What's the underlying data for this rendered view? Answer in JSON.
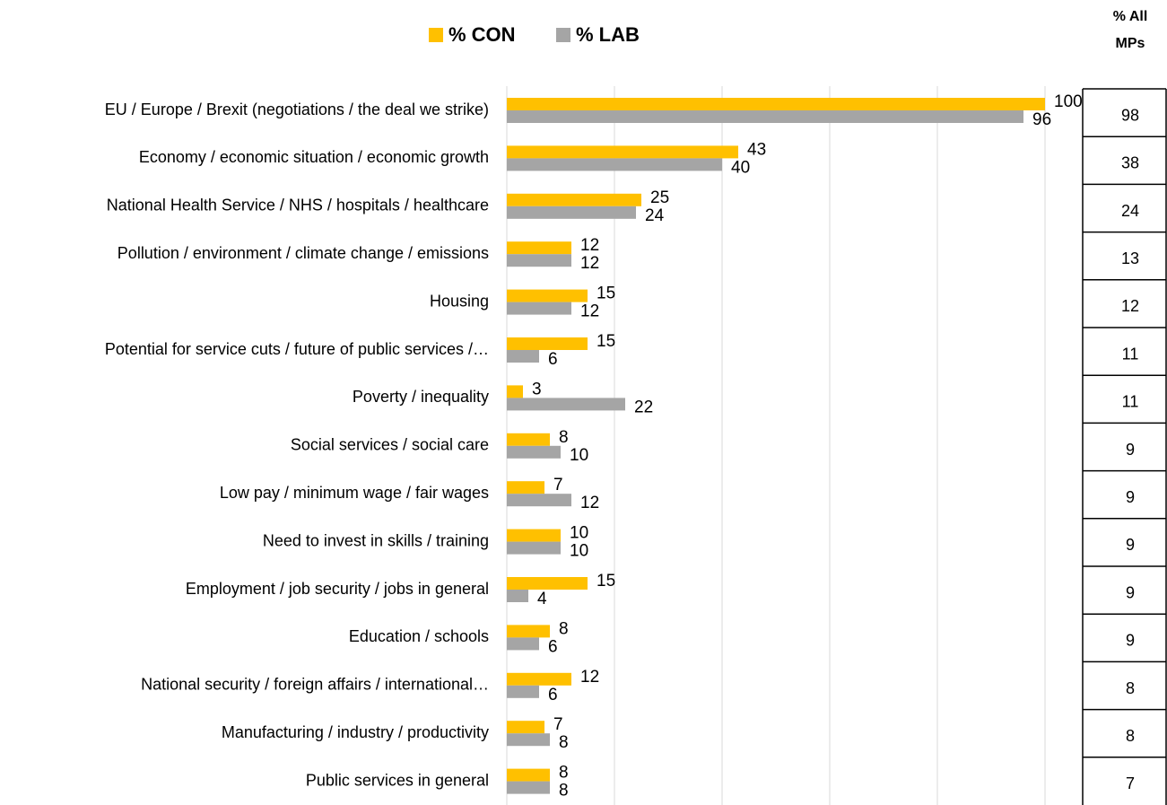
{
  "chart_data": {
    "type": "bar",
    "orientation": "horizontal",
    "categories": [
      "EU / Europe / Brexit (negotiations / the deal we strike)",
      "Economy / economic situation / economic growth",
      "National Health Service / NHS / hospitals / healthcare",
      "Pollution / environment / climate change / emissions",
      "Housing",
      "Potential for service cuts / future of public services /…",
      "Poverty / inequality",
      "Social services / social care",
      "Low pay / minimum wage / fair wages",
      "Need to invest in skills / training",
      "Employment / job security / jobs in general",
      "Education / schools",
      "National security / foreign affairs / international…",
      "Manufacturing / industry / productivity",
      "Public services in general"
    ],
    "series": [
      {
        "name": "% CON",
        "color": "#FFC000",
        "values": [
          100,
          43,
          25,
          12,
          15,
          15,
          3,
          8,
          7,
          10,
          15,
          8,
          12,
          7,
          8
        ]
      },
      {
        "name": "% LAB",
        "color": "#A5A5A5",
        "values": [
          96,
          40,
          24,
          12,
          12,
          6,
          22,
          10,
          12,
          10,
          4,
          6,
          6,
          8,
          8
        ]
      }
    ],
    "xlim": [
      0,
      100
    ],
    "xticks": [
      0,
      20,
      40,
      60,
      80,
      100
    ],
    "grid": true,
    "legend": "top",
    "table": {
      "header": "% All MPs",
      "values": [
        98,
        38,
        24,
        13,
        12,
        11,
        11,
        9,
        9,
        9,
        9,
        9,
        8,
        8,
        7
      ]
    }
  }
}
